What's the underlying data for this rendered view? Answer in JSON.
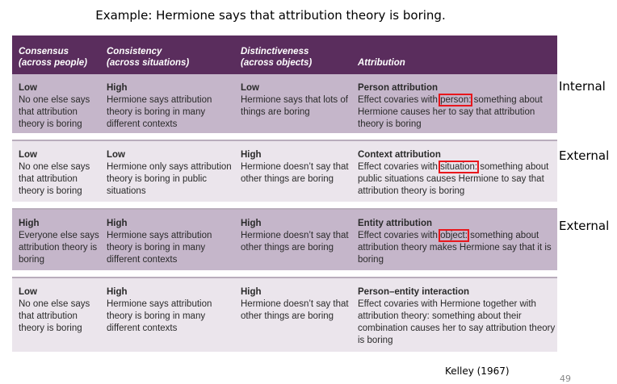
{
  "title": "Example: Hermione says that attribution theory is boring.",
  "headers": [
    {
      "l1": "Consensus",
      "l2": "(across people)"
    },
    {
      "l1": "Consistency",
      "l2": "(across situations)"
    },
    {
      "l1": "Distinctiveness",
      "l2": "(across objects)"
    },
    {
      "l1": "Attribution",
      "l2": ""
    }
  ],
  "rows": [
    {
      "c0": {
        "h": "Low",
        "t": "No one else says that attribution theory is boring"
      },
      "c1": {
        "h": "High",
        "t": "Hermione says attribution theory is boring in many different contexts"
      },
      "c2": {
        "h": "Low",
        "t": "Hermione says that lots of things are boring"
      },
      "c3": {
        "h": "Person attribution",
        "pre": "Effect covaries with ",
        "mark": "person:",
        "post": " something about Hermione causes her to say that attribution theory is boring"
      },
      "side": "Internal"
    },
    {
      "c0": {
        "h": "Low",
        "t": "No one else says that attribution theory is boring"
      },
      "c1": {
        "h": "Low",
        "t": "Hermione only says attribution theory is boring in public situations"
      },
      "c2": {
        "h": "High",
        "t": "Hermione doesn’t say that other things are boring"
      },
      "c3": {
        "h": "Context attribution",
        "pre": "Effect covaries with ",
        "mark": "situation:",
        "post": " something about public situations causes Hermione to say that attribution theory is boring"
      },
      "side": "External"
    },
    {
      "c0": {
        "h": "High",
        "t": "Everyone else says attribution theory is boring"
      },
      "c1": {
        "h": "High",
        "t": "Hermione says attribution theory is boring in many different contexts"
      },
      "c2": {
        "h": "High",
        "t": "Hermione doesn’t say that other things are boring"
      },
      "c3": {
        "h": "Entity attribution",
        "pre": "Effect covaries with ",
        "mark": "object:",
        "post": " something about attribution theory makes Hermione say that it is boring"
      },
      "side": "External"
    },
    {
      "c0": {
        "h": "Low",
        "t": "No one else says that attribution theory is boring"
      },
      "c1": {
        "h": "High",
        "t": "Hermione says attribution theory is boring in many different contexts"
      },
      "c2": {
        "h": "High",
        "t": "Hermione doesn’t say that other things are boring"
      },
      "c3": {
        "h": "Person–entity interaction",
        "pre": "Effect covaries with Hermione together with attribution theory: something about their combination causes her to say attribution theory is boring",
        "mark": "",
        "post": ""
      }
    }
  ],
  "citation": "Kelley (1967)",
  "page_number": "49",
  "colors": {
    "header": "#5a2d5d",
    "row_dark": "#c5b6ca",
    "row_light": "#ebe5ec",
    "highlight": "#e8161c"
  }
}
